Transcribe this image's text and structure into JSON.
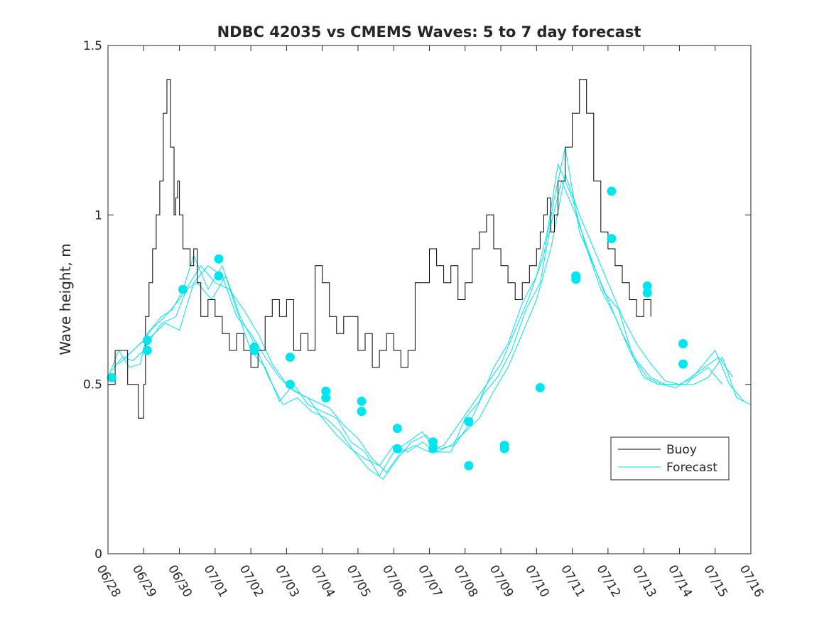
{
  "chart_data": {
    "type": "line",
    "title": "NDBC 42035 vs CMEMS Waves: 5 to 7 day forecast",
    "xlabel": "",
    "ylabel": "Wave height, m",
    "x_ticks": [
      "06/28",
      "06/29",
      "06/30",
      "07/01",
      "07/02",
      "07/03",
      "07/04",
      "07/05",
      "07/06",
      "07/07",
      "07/08",
      "07/09",
      "07/10",
      "07/11",
      "07/12",
      "07/13",
      "07/14",
      "07/15",
      "07/16"
    ],
    "y_ticks": [
      "0",
      "0.5",
      "1",
      "1.5"
    ],
    "xlim": [
      "06/28",
      "07/16"
    ],
    "ylim": [
      0,
      1.5
    ],
    "grid": false,
    "legend_position": "bottom-right",
    "colors": {
      "buoy": "#000000",
      "forecast": "#00e5ee"
    },
    "series": [
      {
        "name": "Buoy",
        "x_unit": "days after 06/28",
        "x": [
          0,
          0.2,
          0.4,
          0.55,
          0.6,
          0.8,
          0.85,
          1.0,
          1.05,
          1.15,
          1.25,
          1.35,
          1.45,
          1.55,
          1.65,
          1.75,
          1.85,
          1.9,
          1.95,
          2.0,
          2.1,
          2.2,
          2.3,
          2.4,
          2.5,
          2.6,
          2.8,
          3.0,
          3.2,
          3.4,
          3.6,
          3.8,
          4.0,
          4.2,
          4.4,
          4.6,
          4.8,
          5.0,
          5.2,
          5.4,
          5.6,
          5.8,
          6.0,
          6.2,
          6.4,
          6.6,
          6.8,
          7.0,
          7.2,
          7.4,
          7.6,
          7.8,
          8.0,
          8.2,
          8.4,
          8.6,
          8.8,
          9.0,
          9.2,
          9.4,
          9.6,
          9.8,
          10.0,
          10.2,
          10.4,
          10.6,
          10.8,
          11.0,
          11.2,
          11.4,
          11.6,
          11.8,
          12.0,
          12.1,
          12.2,
          12.3,
          12.4,
          12.5,
          12.6,
          12.8,
          13.0,
          13.2,
          13.4,
          13.6,
          13.8,
          14.0,
          14.2,
          14.4,
          14.6,
          14.8,
          15.0,
          15.2
        ],
        "y": [
          0.5,
          0.6,
          0.6,
          0.5,
          0.5,
          0.5,
          0.4,
          0.5,
          0.7,
          0.8,
          0.9,
          1.0,
          1.1,
          1.3,
          1.4,
          1.2,
          1.0,
          1.05,
          1.1,
          1.0,
          0.9,
          0.9,
          0.85,
          0.9,
          0.8,
          0.7,
          0.75,
          0.7,
          0.65,
          0.6,
          0.65,
          0.6,
          0.55,
          0.6,
          0.7,
          0.75,
          0.7,
          0.75,
          0.6,
          0.65,
          0.6,
          0.85,
          0.8,
          0.7,
          0.65,
          0.7,
          0.7,
          0.6,
          0.65,
          0.55,
          0.6,
          0.65,
          0.6,
          0.55,
          0.6,
          0.8,
          0.8,
          0.9,
          0.85,
          0.8,
          0.85,
          0.75,
          0.8,
          0.9,
          0.95,
          1.0,
          0.9,
          0.85,
          0.8,
          0.75,
          0.8,
          0.85,
          0.9,
          0.95,
          1.0,
          1.05,
          0.95,
          1.0,
          1.1,
          1.2,
          1.3,
          1.4,
          1.3,
          1.1,
          0.95,
          0.9,
          0.85,
          0.8,
          0.75,
          0.7,
          0.75,
          0.7
        ]
      },
      {
        "name": "Forecast",
        "x_unit": "days after 06/28",
        "runs": [
          {
            "x": [
              0,
              0.3,
              0.6,
              0.9,
              1.1,
              1.5,
              1.8,
              2.1,
              2.4,
              2.8,
              3.2,
              3.6,
              4.0,
              4.4,
              4.8,
              5.2,
              5.6,
              6.0,
              6.4,
              6.8,
              7.2,
              7.6,
              8.0,
              8.4,
              8.8,
              9.2,
              9.6,
              10.0,
              10.4,
              10.8,
              11.2,
              11.6,
              12.0,
              12.3,
              12.6,
              13.0,
              13.4,
              13.8,
              14.2,
              14.6,
              15.0,
              15.4,
              15.8,
              16.2,
              16.6,
              17.0,
              17.4,
              17.8
            ],
            "y": [
              0.52,
              0.6,
              0.55,
              0.56,
              0.65,
              0.7,
              0.72,
              0.78,
              0.88,
              0.78,
              0.85,
              0.72,
              0.6,
              0.55,
              0.45,
              0.5,
              0.44,
              0.42,
              0.4,
              0.33,
              0.3,
              0.23,
              0.3,
              0.33,
              0.36,
              0.3,
              0.3,
              0.4,
              0.45,
              0.55,
              0.62,
              0.74,
              0.82,
              0.95,
              1.15,
              1.05,
              0.9,
              0.78,
              0.7,
              0.6,
              0.52,
              0.5,
              0.5,
              0.5,
              0.55,
              0.6,
              0.5,
              0.45
            ]
          },
          {
            "x": [
              0.1,
              0.4,
              0.7,
              1.0,
              1.1,
              1.5,
              1.9,
              2.2,
              2.5,
              2.9,
              3.3,
              3.7,
              4.1,
              4.5,
              4.9,
              5.3,
              5.7,
              6.1,
              6.5,
              6.9,
              7.3,
              7.7,
              8.1,
              8.5,
              8.9,
              9.3,
              9.7,
              10.1,
              10.5,
              10.9,
              11.3,
              11.7,
              12.1,
              12.4,
              12.7,
              13.1,
              13.5,
              13.9,
              14.3,
              14.7,
              15.1,
              15.5,
              15.9,
              16.3,
              16.7,
              17.1,
              17.5
            ],
            "y": [
              0.54,
              0.58,
              0.57,
              0.6,
              0.62,
              0.68,
              0.7,
              0.78,
              0.8,
              0.75,
              0.82,
              0.7,
              0.62,
              0.52,
              0.44,
              0.46,
              0.42,
              0.4,
              0.36,
              0.3,
              0.25,
              0.22,
              0.28,
              0.33,
              0.35,
              0.31,
              0.32,
              0.38,
              0.47,
              0.52,
              0.6,
              0.72,
              0.8,
              0.97,
              1.1,
              1.0,
              0.88,
              0.77,
              0.72,
              0.58,
              0.52,
              0.5,
              0.49,
              0.52,
              0.55,
              0.58,
              0.52
            ]
          },
          {
            "x": [
              0.3,
              0.7,
              1.0,
              1.2,
              1.6,
              2.0,
              2.3,
              2.6,
              3.0,
              3.4,
              3.8,
              4.2,
              4.6,
              5.0,
              5.4,
              5.8,
              6.2,
              6.6,
              7.0,
              7.4,
              7.8,
              8.2,
              8.6,
              9.0,
              9.4,
              9.8,
              10.2,
              10.6,
              11.0,
              11.4,
              11.8,
              12.2,
              12.5,
              12.8,
              13.2,
              13.6,
              14.0,
              14.4,
              14.8,
              15.2,
              15.6,
              16.0,
              16.4,
              16.8,
              17.2
            ],
            "y": [
              0.56,
              0.6,
              0.63,
              0.66,
              0.7,
              0.75,
              0.8,
              0.85,
              0.8,
              0.78,
              0.72,
              0.65,
              0.56,
              0.5,
              0.47,
              0.45,
              0.43,
              0.38,
              0.34,
              0.28,
              0.24,
              0.3,
              0.32,
              0.3,
              0.32,
              0.38,
              0.44,
              0.5,
              0.56,
              0.66,
              0.76,
              0.88,
              1.05,
              1.2,
              0.95,
              0.85,
              0.75,
              0.65,
              0.57,
              0.52,
              0.5,
              0.5,
              0.52,
              0.55,
              0.5
            ]
          },
          {
            "x": [
              0.5,
              0.9,
              1.2,
              1.6,
              2.0,
              2.4,
              2.8,
              3.2,
              3.6,
              4.0,
              4.4,
              4.8,
              5.2,
              5.6,
              6.0,
              6.4,
              6.8,
              7.2,
              7.6,
              8.0,
              8.4,
              8.8,
              9.2,
              9.6,
              10.0,
              10.4,
              10.8,
              11.2,
              11.6,
              12.0,
              12.4,
              12.8,
              13.2,
              13.6,
              14.0,
              14.4,
              14.8,
              15.2,
              15.6,
              16.0,
              16.4,
              16.8,
              17.2,
              17.6,
              18.0
            ],
            "y": [
              0.58,
              0.62,
              0.64,
              0.68,
              0.66,
              0.8,
              0.85,
              0.82,
              0.7,
              0.65,
              0.58,
              0.52,
              0.48,
              0.46,
              0.4,
              0.35,
              0.31,
              0.28,
              0.26,
              0.32,
              0.3,
              0.33,
              0.3,
              0.32,
              0.36,
              0.4,
              0.48,
              0.55,
              0.65,
              0.75,
              0.9,
              1.12,
              1.0,
              0.9,
              0.8,
              0.7,
              0.62,
              0.56,
              0.51,
              0.5,
              0.5,
              0.52,
              0.58,
              0.46,
              0.44
            ]
          }
        ],
        "markers": [
          {
            "x": 0.1,
            "y": 0.52
          },
          {
            "x": 1.1,
            "y": 0.63
          },
          {
            "x": 1.1,
            "y": 0.6
          },
          {
            "x": 2.1,
            "y": 0.78
          },
          {
            "x": 3.1,
            "y": 0.87
          },
          {
            "x": 3.1,
            "y": 0.82
          },
          {
            "x": 4.1,
            "y": 0.61
          },
          {
            "x": 4.1,
            "y": 0.6
          },
          {
            "x": 5.1,
            "y": 0.58
          },
          {
            "x": 5.1,
            "y": 0.5
          },
          {
            "x": 6.1,
            "y": 0.48
          },
          {
            "x": 6.1,
            "y": 0.46
          },
          {
            "x": 7.1,
            "y": 0.45
          },
          {
            "x": 7.1,
            "y": 0.42
          },
          {
            "x": 8.1,
            "y": 0.37
          },
          {
            "x": 8.1,
            "y": 0.31
          },
          {
            "x": 9.1,
            "y": 0.33
          },
          {
            "x": 9.1,
            "y": 0.31
          },
          {
            "x": 10.1,
            "y": 0.39
          },
          {
            "x": 10.1,
            "y": 0.26
          },
          {
            "x": 11.1,
            "y": 0.32
          },
          {
            "x": 11.1,
            "y": 0.31
          },
          {
            "x": 12.1,
            "y": 0.49
          },
          {
            "x": 13.1,
            "y": 0.82
          },
          {
            "x": 13.1,
            "y": 0.81
          },
          {
            "x": 14.1,
            "y": 1.07
          },
          {
            "x": 14.1,
            "y": 0.93
          },
          {
            "x": 15.1,
            "y": 0.79
          },
          {
            "x": 15.1,
            "y": 0.77
          },
          {
            "x": 16.1,
            "y": 0.62
          },
          {
            "x": 16.1,
            "y": 0.56
          }
        ]
      }
    ]
  }
}
